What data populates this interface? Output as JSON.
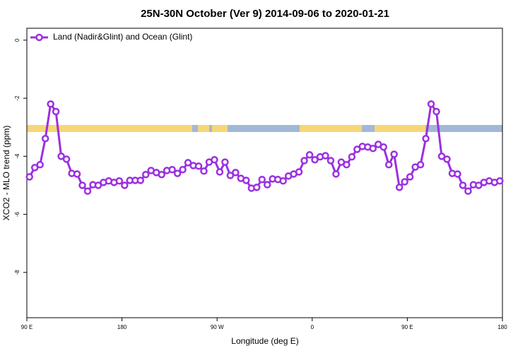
{
  "chart_data": {
    "type": "line",
    "title": "25N-30N October (Ver 9)   2014-09-06 to 2020-01-21",
    "x_label": "Longitude (deg E)",
    "y_label": "XCO2 - MLO trend (ppm)",
    "xlim": [
      90,
      540
    ],
    "xticks": [
      {
        "value": 90,
        "label": "90 E"
      },
      180,
      {
        "value": 270,
        "label": "90 W"
      },
      {
        "value": 360,
        "label": "0"
      },
      {
        "value": 450,
        "label": "90 E"
      },
      {
        "value": 540,
        "label": "180"
      }
    ],
    "ylim": [
      -9.56,
      0.41
    ],
    "yticks": [
      0,
      -2,
      -4,
      -6,
      -8
    ],
    "legend": "top-left",
    "x": [
      92.5,
      97.5,
      102.5,
      107.5,
      112.5,
      117.5,
      122.5,
      127.5,
      132.5,
      137.5,
      142.5,
      147.5,
      152.5,
      157.5,
      162.5,
      167.5,
      172.5,
      177.5,
      182.5,
      187.5,
      192.5,
      197.5,
      202.5,
      207.5,
      212.5,
      217.5,
      222.5,
      227.5,
      232.5,
      237.5,
      242.5,
      247.5,
      252.5,
      257.5,
      262.5,
      267.5,
      272.5,
      277.5,
      282.5,
      287.5,
      292.5,
      297.5,
      302.5,
      307.5,
      312.5,
      317.5,
      322.5,
      327.5,
      332.5,
      337.5,
      342.5,
      347.5,
      352.5,
      357.5,
      362.5,
      367.5,
      372.5,
      377.5,
      382.5,
      387.5,
      392.5,
      397.5,
      402.5,
      407.5,
      412.5,
      417.5,
      422.5,
      427.5,
      432.5,
      437.5,
      442.5,
      447.5,
      452.5,
      457.5,
      462.5,
      467.5,
      472.5,
      477.5,
      482.5,
      487.5,
      492.5,
      497.5,
      502.5,
      507.5,
      512.5,
      517.5,
      522.5,
      527.5,
      532.5,
      537.5
    ],
    "series": [
      {
        "name": "Land (Nadir&Glint) and Ocean (Glint)",
        "color": "#9b30e0",
        "values": [
          -4.71,
          -4.39,
          -4.29,
          -3.39,
          -2.2,
          -2.46,
          -4.0,
          -4.1,
          -4.59,
          -4.61,
          -5.0,
          -5.2,
          -4.98,
          -5.0,
          -4.9,
          -4.85,
          -4.9,
          -4.85,
          -5.0,
          -4.83,
          -4.83,
          -4.83,
          -4.63,
          -4.49,
          -4.56,
          -4.63,
          -4.49,
          -4.46,
          -4.59,
          -4.46,
          -4.22,
          -4.32,
          -4.34,
          -4.51,
          -4.2,
          -4.12,
          -4.54,
          -4.2,
          -4.66,
          -4.56,
          -4.76,
          -4.83,
          -5.1,
          -5.07,
          -4.8,
          -4.98,
          -4.78,
          -4.8,
          -4.85,
          -4.68,
          -4.61,
          -4.54,
          -4.15,
          -3.95,
          -4.12,
          -4.02,
          -3.98,
          -4.15,
          -4.61,
          -4.2,
          -4.29,
          -4.02,
          -3.76,
          -3.66,
          -3.68,
          -3.73,
          -3.59,
          -3.68,
          -4.29,
          -3.93,
          -5.07,
          -4.88,
          -4.71,
          -4.37,
          -4.29,
          -3.39,
          -2.2,
          -2.46,
          -4.0,
          -4.1,
          -4.59,
          -4.61,
          -5.0,
          -5.2,
          -4.98,
          -5.0,
          -4.9,
          -4.85,
          -4.9,
          -4.85
        ]
      }
    ]
  }
}
